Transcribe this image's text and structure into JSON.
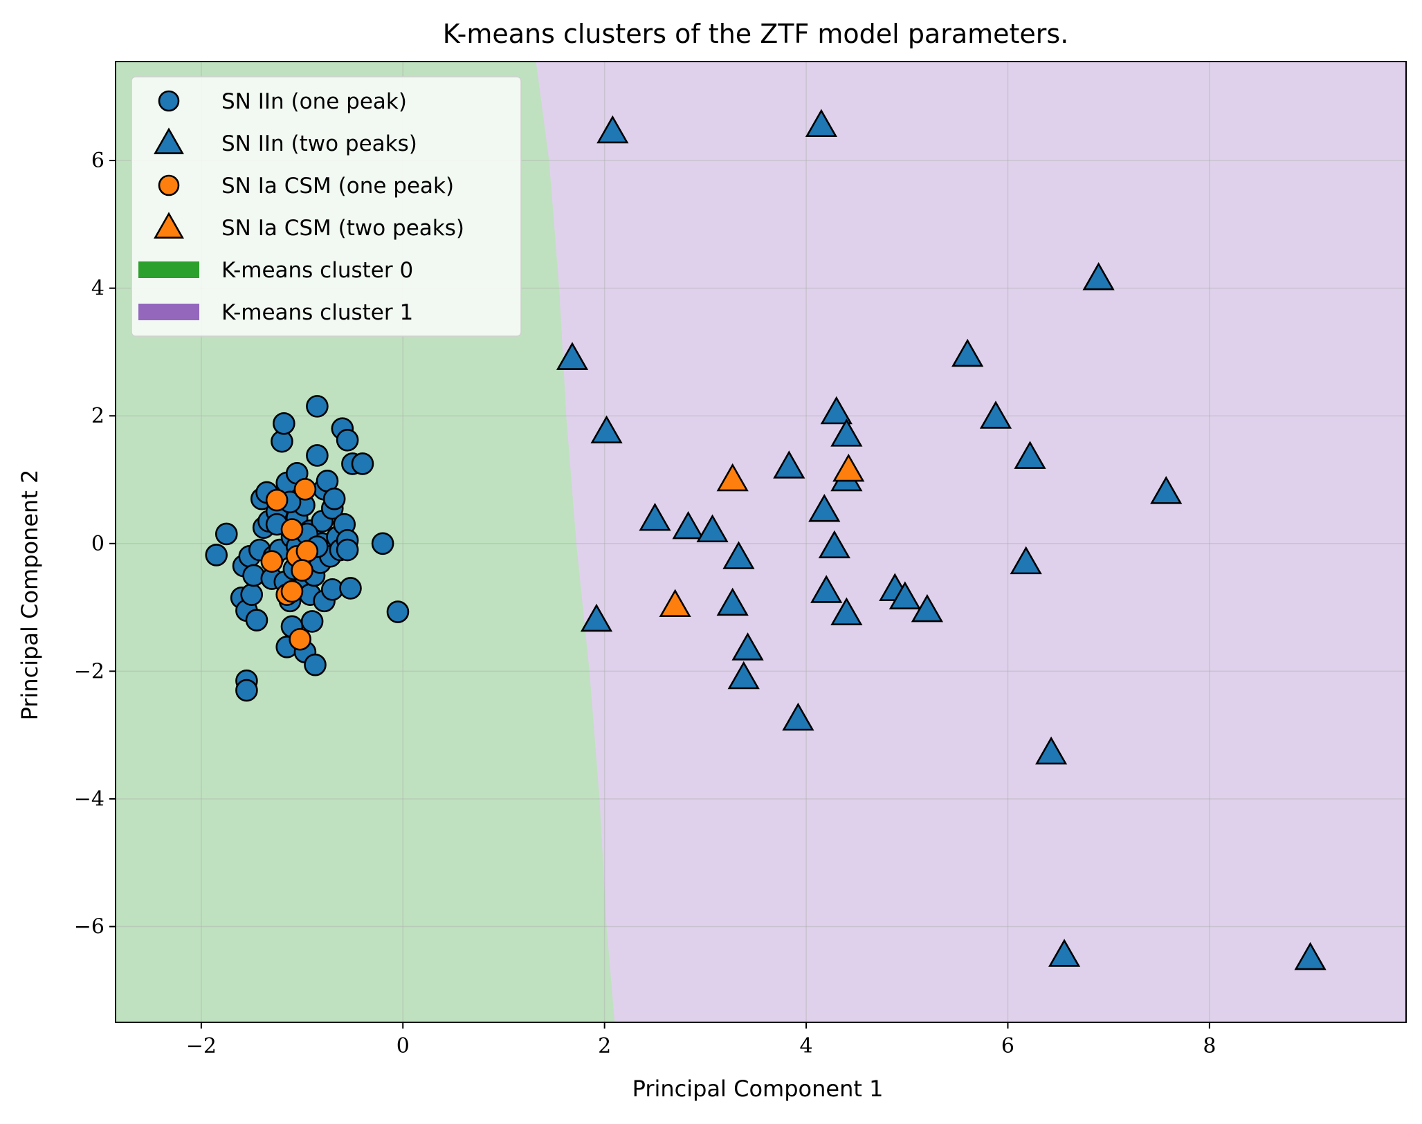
{
  "chart_data": {
    "type": "scatter",
    "title": "K-means clusters of the ZTF model parameters.",
    "xlabel": "Principal Component 1",
    "ylabel": "Principal Component 2",
    "xlim": [
      -2.85,
      9.95
    ],
    "ylim": [
      -7.5,
      7.55
    ],
    "xticks": [
      -2,
      0,
      2,
      4,
      6,
      8
    ],
    "yticks": [
      -6,
      -4,
      -2,
      0,
      2,
      4,
      6
    ],
    "xtick_labels": [
      "−2",
      "0",
      "2",
      "4",
      "6",
      "8"
    ],
    "ytick_labels": [
      "−6",
      "−4",
      "−2",
      "0",
      "2",
      "4",
      "6"
    ],
    "grid": true,
    "legend_position": "top-left",
    "colors": {
      "blue": "#1f77b4",
      "orange": "#ff7f0e",
      "cluster0_fill": "#bfe1bf",
      "cluster1_fill": "#dfd1eb",
      "cluster0_legend": "#2ca02c",
      "cluster1_legend": "#9467bd"
    },
    "regions": [
      {
        "name": "K-means cluster 0",
        "color": "#bfe1bf",
        "boundary": [
          [
            1.32,
            7.55
          ],
          [
            1.45,
            6.0
          ],
          [
            1.55,
            4.0
          ],
          [
            1.62,
            2.0
          ],
          [
            1.72,
            0.0
          ],
          [
            1.85,
            -2.0
          ],
          [
            1.95,
            -4.0
          ],
          [
            2.02,
            -6.0
          ],
          [
            2.1,
            -7.5
          ]
        ]
      },
      {
        "name": "K-means cluster 1",
        "color": "#dfd1eb"
      }
    ],
    "legend": [
      {
        "label": "SN IIn (one peak)",
        "marker": "circle",
        "color": "#1f77b4"
      },
      {
        "label": "SN IIn (two peaks)",
        "marker": "triangle",
        "color": "#1f77b4"
      },
      {
        "label": "SN Ia CSM (one peak)",
        "marker": "circle",
        "color": "#ff7f0e"
      },
      {
        "label": "SN Ia CSM (two peaks)",
        "marker": "triangle",
        "color": "#ff7f0e"
      },
      {
        "label": "K-means cluster 0",
        "marker": "patch",
        "color": "#2ca02c"
      },
      {
        "label": "K-means cluster 1",
        "marker": "patch",
        "color": "#9467bd"
      }
    ],
    "series": [
      {
        "name": "SN IIn (one peak)",
        "marker": "circle",
        "color": "#1f77b4",
        "points": [
          [
            -1.85,
            -0.18
          ],
          [
            -1.75,
            0.15
          ],
          [
            -1.58,
            -0.35
          ],
          [
            -1.6,
            -0.85
          ],
          [
            -1.52,
            -0.2
          ],
          [
            -1.55,
            -1.05
          ],
          [
            -1.5,
            -0.8
          ],
          [
            -1.45,
            -1.2
          ],
          [
            -1.48,
            -0.5
          ],
          [
            -1.42,
            -0.1
          ],
          [
            -1.4,
            0.7
          ],
          [
            -1.38,
            0.25
          ],
          [
            -1.35,
            0.8
          ],
          [
            -1.33,
            0.35
          ],
          [
            -1.3,
            -0.55
          ],
          [
            -1.28,
            -0.2
          ],
          [
            -1.25,
            0.5
          ],
          [
            -1.22,
            -0.1
          ],
          [
            -1.2,
            1.6
          ],
          [
            -1.18,
            1.88
          ],
          [
            -1.17,
            -0.6
          ],
          [
            -1.15,
            0.95
          ],
          [
            -1.15,
            -1.62
          ],
          [
            -1.12,
            -0.9
          ],
          [
            -1.1,
            -1.3
          ],
          [
            -1.1,
            0.1
          ],
          [
            -1.08,
            -0.4
          ],
          [
            -1.05,
            1.1
          ],
          [
            -1.05,
            0.4
          ],
          [
            -1.02,
            -0.15
          ],
          [
            -1.0,
            -0.7
          ],
          [
            -0.98,
            0.6
          ],
          [
            -0.97,
            -1.7
          ],
          [
            -0.95,
            -0.25
          ],
          [
            -0.92,
            -0.8
          ],
          [
            -0.92,
            0.2
          ],
          [
            -0.9,
            -1.22
          ],
          [
            -0.88,
            -0.5
          ],
          [
            -0.87,
            -1.9
          ],
          [
            -0.85,
            1.38
          ],
          [
            -0.85,
            2.15
          ],
          [
            -0.82,
            -0.3
          ],
          [
            -0.8,
            0.0
          ],
          [
            -0.8,
            0.35
          ],
          [
            -0.78,
            0.85
          ],
          [
            -0.78,
            -0.9
          ],
          [
            -0.75,
            0.98
          ],
          [
            -0.72,
            -0.2
          ],
          [
            -0.7,
            0.55
          ],
          [
            -0.7,
            -0.72
          ],
          [
            -0.68,
            0.7
          ],
          [
            -0.65,
            0.1
          ],
          [
            -0.62,
            -0.1
          ],
          [
            -0.6,
            1.8
          ],
          [
            -0.58,
            0.3
          ],
          [
            -0.55,
            1.62
          ],
          [
            -0.55,
            0.05
          ],
          [
            -0.55,
            -0.1
          ],
          [
            -0.52,
            -0.7
          ],
          [
            -0.5,
            1.25
          ],
          [
            -0.4,
            1.25
          ],
          [
            -0.2,
            0.0
          ],
          [
            -0.05,
            -1.07
          ],
          [
            -1.55,
            -2.15
          ],
          [
            -1.55,
            -2.3
          ],
          [
            -1.25,
            0.3
          ],
          [
            -1.05,
            -0.05
          ],
          [
            -0.95,
            0.15
          ],
          [
            -0.85,
            -0.05
          ],
          [
            -1.12,
            0.65
          ]
        ]
      },
      {
        "name": "SN IIn (two peaks)",
        "marker": "triangle",
        "color": "#1f77b4",
        "points": [
          [
            2.08,
            6.45
          ],
          [
            4.15,
            6.55
          ],
          [
            6.9,
            4.15
          ],
          [
            1.68,
            2.9
          ],
          [
            5.6,
            2.95
          ],
          [
            2.02,
            1.75
          ],
          [
            4.3,
            2.05
          ],
          [
            5.88,
            1.98
          ],
          [
            4.4,
            1.7
          ],
          [
            6.22,
            1.35
          ],
          [
            3.83,
            1.2
          ],
          [
            4.4,
            1.0
          ],
          [
            7.57,
            0.8
          ],
          [
            2.5,
            0.38
          ],
          [
            4.18,
            0.52
          ],
          [
            2.83,
            0.25
          ],
          [
            3.07,
            0.2
          ],
          [
            3.33,
            -0.22
          ],
          [
            4.28,
            -0.05
          ],
          [
            6.18,
            -0.3
          ],
          [
            1.92,
            -1.2
          ],
          [
            3.27,
            -0.95
          ],
          [
            4.2,
            -0.75
          ],
          [
            4.88,
            -0.72
          ],
          [
            4.98,
            -0.85
          ],
          [
            5.2,
            -1.05
          ],
          [
            4.4,
            -1.1
          ],
          [
            3.42,
            -1.65
          ],
          [
            3.38,
            -2.1
          ],
          [
            3.92,
            -2.75
          ],
          [
            6.43,
            -3.28
          ],
          [
            6.56,
            -6.45
          ],
          [
            9.0,
            -6.5
          ]
        ]
      },
      {
        "name": "SN Ia CSM (one peak)",
        "marker": "circle",
        "color": "#ff7f0e",
        "points": [
          [
            -1.25,
            0.68
          ],
          [
            -0.97,
            0.85
          ],
          [
            -1.1,
            0.22
          ],
          [
            -1.3,
            -0.28
          ],
          [
            -1.05,
            -0.2
          ],
          [
            -0.95,
            -0.12
          ],
          [
            -1.0,
            -0.42
          ],
          [
            -1.15,
            -0.8
          ],
          [
            -1.1,
            -0.75
          ],
          [
            -1.02,
            -1.5
          ]
        ]
      },
      {
        "name": "SN Ia CSM (two peaks)",
        "marker": "triangle",
        "color": "#ff7f0e",
        "points": [
          [
            3.27,
            1.0
          ],
          [
            4.42,
            1.15
          ],
          [
            2.7,
            -0.97
          ]
        ]
      }
    ]
  }
}
